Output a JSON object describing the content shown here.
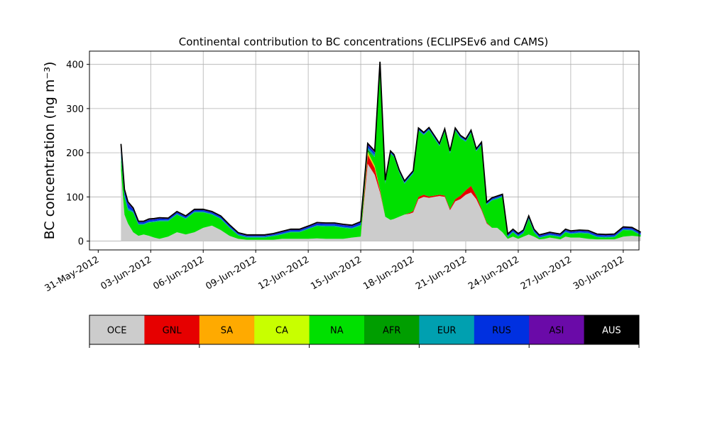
{
  "chart_data": {
    "type": "area",
    "title": "Continental contribution to BC concentrations (ECLIPSEv6 and CAMS)",
    "ylabel": "BC concentration (ng m⁻³)",
    "xlabel": "",
    "ylim": [
      -20,
      430
    ],
    "yticks": [
      0,
      100,
      200,
      300,
      400
    ],
    "xlim_days": [
      -0.5,
      30.9
    ],
    "x_tick_labels": [
      "31-May-2012",
      "03-Jun-2012",
      "06-Jun-2012",
      "09-Jun-2012",
      "12-Jun-2012",
      "15-Jun-2012",
      "18-Jun-2012",
      "21-Jun-2012",
      "24-Jun-2012",
      "27-Jun-2012",
      "30-Jun-2012"
    ],
    "x_tick_days": [
      0,
      3,
      6,
      9,
      12,
      15,
      18,
      21,
      24,
      27,
      30
    ],
    "grid": true,
    "legend_position": "bottom colorbar",
    "x_days": [
      1.3,
      1.5,
      1.7,
      2.0,
      2.3,
      2.6,
      2.9,
      3.2,
      3.5,
      4.0,
      4.5,
      5.0,
      5.5,
      6.0,
      6.5,
      7.0,
      7.5,
      8.0,
      8.5,
      9.0,
      9.5,
      10.0,
      10.5,
      11.0,
      11.5,
      12.0,
      12.5,
      13.0,
      13.5,
      14.0,
      14.5,
      15.0,
      15.4,
      15.8,
      16.1,
      16.4,
      16.7,
      16.9,
      17.2,
      17.5,
      17.8,
      18.0,
      18.3,
      18.6,
      18.9,
      19.2,
      19.5,
      19.8,
      20.1,
      20.4,
      20.7,
      21.0,
      21.3,
      21.6,
      21.9,
      22.2,
      22.5,
      22.8,
      23.1,
      23.4,
      23.7,
      24.0,
      24.3,
      24.6,
      24.9,
      25.2,
      25.5,
      25.8,
      26.1,
      26.4,
      26.7,
      27.0,
      27.5,
      28.0,
      28.5,
      29.0,
      29.5,
      30.0,
      30.5,
      31.0
    ],
    "series": [
      {
        "name": "OCE",
        "color": "#cccccc",
        "values": [
          160,
          60,
          40,
          20,
          12,
          15,
          12,
          8,
          5,
          10,
          20,
          15,
          20,
          30,
          35,
          25,
          12,
          5,
          3,
          3,
          3,
          3,
          5,
          5,
          5,
          5,
          6,
          5,
          5,
          5,
          8,
          10,
          175,
          150,
          110,
          55,
          48,
          50,
          55,
          60,
          62,
          65,
          95,
          100,
          98,
          100,
          102,
          100,
          70,
          90,
          95,
          105,
          110,
          95,
          70,
          40,
          30,
          30,
          20,
          5,
          10,
          5,
          10,
          15,
          10,
          4,
          5,
          8,
          6,
          4,
          10,
          8,
          8,
          5,
          4,
          4,
          4,
          10,
          12,
          10
        ]
      },
      {
        "name": "GNL",
        "color": "#e60000",
        "values": [
          0,
          0,
          0,
          0,
          0,
          0,
          0,
          0,
          0,
          0,
          0,
          0,
          0,
          0,
          0,
          0,
          0,
          0,
          0,
          0,
          0,
          0,
          0,
          0,
          0,
          0,
          0,
          0,
          0,
          0,
          0,
          0,
          20,
          15,
          5,
          0,
          0,
          0,
          0,
          0,
          2,
          3,
          5,
          5,
          3,
          3,
          3,
          3,
          3,
          5,
          8,
          10,
          15,
          8,
          3,
          2,
          0,
          0,
          0,
          0,
          0,
          0,
          0,
          0,
          0,
          0,
          0,
          0,
          0,
          0,
          0,
          0,
          0,
          0,
          0,
          0,
          0,
          0,
          0,
          0
        ]
      },
      {
        "name": "SA",
        "color": "#ffaa00",
        "values": [
          0,
          0,
          0,
          0,
          0,
          0,
          0,
          0,
          0,
          0,
          0,
          0,
          0,
          0,
          0,
          0,
          0,
          0,
          0,
          0,
          0,
          0,
          0,
          0,
          0,
          0,
          0,
          0,
          0,
          0,
          0,
          0,
          5,
          3,
          2,
          0,
          0,
          0,
          0,
          0,
          0,
          0,
          0,
          0,
          0,
          0,
          0,
          0,
          0,
          0,
          0,
          0,
          0,
          0,
          0,
          0,
          0,
          0,
          0,
          0,
          0,
          0,
          0,
          0,
          0,
          0,
          0,
          0,
          0,
          0,
          0,
          0,
          0,
          0,
          0,
          0,
          0,
          0,
          0,
          0
        ]
      },
      {
        "name": "CA",
        "color": "#c8ff00",
        "values": [
          0,
          0,
          0,
          0,
          0,
          0,
          0,
          0,
          0,
          0,
          0,
          0,
          0,
          0,
          0,
          0,
          0,
          0,
          0,
          0,
          0,
          0,
          0,
          0,
          0,
          0,
          0,
          0,
          0,
          0,
          0,
          0,
          2,
          2,
          0,
          0,
          0,
          0,
          0,
          0,
          0,
          0,
          0,
          0,
          0,
          0,
          0,
          0,
          0,
          0,
          0,
          0,
          0,
          0,
          0,
          0,
          0,
          0,
          0,
          0,
          0,
          0,
          0,
          0,
          0,
          0,
          0,
          0,
          0,
          0,
          0,
          0,
          0,
          0,
          0,
          0,
          0,
          0,
          0,
          0
        ]
      },
      {
        "name": "NA",
        "color": "#00e000",
        "values": [
          30,
          40,
          30,
          45,
          25,
          22,
          30,
          35,
          40,
          35,
          40,
          35,
          45,
          35,
          25,
          25,
          18,
          8,
          5,
          5,
          5,
          8,
          10,
          15,
          15,
          22,
          28,
          28,
          28,
          25,
          20,
          25,
          0,
          20,
          270,
          75,
          150,
          140,
          100,
          70,
          80,
          85,
          150,
          135,
          150,
          130,
          110,
          145,
          125,
          155,
          130,
          110,
          120,
          100,
          145,
          40,
          62,
          65,
          80,
          4,
          10,
          5,
          8,
          35,
          10,
          3,
          5,
          5,
          5,
          5,
          10,
          8,
          10,
          12,
          5,
          4,
          5,
          15,
          12,
          3
        ]
      },
      {
        "name": "AFR",
        "color": "#009e00",
        "values": [
          0,
          0,
          0,
          0,
          0,
          0,
          0,
          0,
          0,
          0,
          0,
          0,
          0,
          0,
          0,
          0,
          0,
          0,
          0,
          0,
          0,
          0,
          0,
          0,
          0,
          0,
          0,
          0,
          0,
          0,
          0,
          0,
          5,
          0,
          5,
          0,
          0,
          0,
          0,
          0,
          0,
          0,
          0,
          0,
          0,
          0,
          0,
          0,
          0,
          0,
          0,
          0,
          0,
          0,
          0,
          0,
          0,
          0,
          0,
          0,
          0,
          0,
          0,
          0,
          0,
          0,
          0,
          0,
          0,
          0,
          0,
          0,
          0,
          0,
          0,
          0,
          0,
          0,
          0,
          0
        ]
      },
      {
        "name": "EUR",
        "color": "#00a0b0",
        "values": [
          10,
          5,
          5,
          2,
          2,
          2,
          2,
          2,
          2,
          2,
          2,
          2,
          2,
          2,
          2,
          2,
          2,
          2,
          2,
          2,
          2,
          2,
          2,
          2,
          2,
          2,
          2,
          2,
          2,
          2,
          2,
          2,
          5,
          5,
          5,
          3,
          2,
          2,
          2,
          2,
          2,
          2,
          2,
          2,
          2,
          2,
          2,
          2,
          2,
          2,
          2,
          2,
          2,
          2,
          2,
          2,
          2,
          3,
          2,
          2,
          2,
          2,
          2,
          2,
          2,
          2,
          2,
          2,
          2,
          2,
          2,
          2,
          2,
          2,
          2,
          2,
          2,
          2,
          2,
          2
        ]
      },
      {
        "name": "RUS",
        "color": "#0030e0",
        "values": [
          15,
          8,
          10,
          5,
          4,
          4,
          4,
          4,
          4,
          3,
          3,
          3,
          3,
          3,
          3,
          3,
          3,
          2,
          2,
          2,
          2,
          2,
          3,
          3,
          3,
          3,
          4,
          4,
          4,
          4,
          4,
          5,
          5,
          5,
          5,
          3,
          2,
          2,
          2,
          2,
          2,
          2,
          2,
          2,
          2,
          2,
          2,
          2,
          2,
          2,
          2,
          2,
          2,
          2,
          2,
          2,
          2,
          2,
          2,
          3,
          3,
          3,
          3,
          3,
          3,
          3,
          3,
          3,
          3,
          3,
          3,
          3,
          3,
          3,
          3,
          3,
          3,
          3,
          3,
          3
        ]
      },
      {
        "name": "ASI",
        "color": "#6a0aa8",
        "values": [
          3,
          2,
          2,
          2,
          1,
          1,
          1,
          1,
          1,
          1,
          1,
          1,
          1,
          1,
          1,
          1,
          1,
          1,
          1,
          1,
          1,
          1,
          1,
          1,
          1,
          1,
          1,
          1,
          1,
          1,
          1,
          1,
          2,
          2,
          2,
          1,
          1,
          1,
          1,
          1,
          1,
          1,
          1,
          1,
          1,
          1,
          1,
          1,
          1,
          1,
          1,
          1,
          1,
          1,
          1,
          1,
          1,
          1,
          1,
          1,
          1,
          1,
          1,
          1,
          1,
          1,
          1,
          1,
          1,
          1,
          1,
          1,
          1,
          1,
          1,
          1,
          1,
          1,
          1,
          1
        ]
      },
      {
        "name": "AUS",
        "color": "#000000",
        "values": [
          2,
          2,
          2,
          1,
          1,
          1,
          1,
          1,
          1,
          1,
          1,
          1,
          1,
          1,
          1,
          1,
          1,
          1,
          1,
          1,
          1,
          1,
          1,
          1,
          1,
          1,
          1,
          1,
          1,
          1,
          1,
          1,
          2,
          2,
          2,
          1,
          1,
          1,
          1,
          1,
          1,
          1,
          1,
          1,
          1,
          1,
          1,
          1,
          1,
          1,
          1,
          1,
          1,
          1,
          1,
          1,
          1,
          1,
          1,
          1,
          1,
          1,
          1,
          1,
          1,
          1,
          1,
          1,
          1,
          1,
          1,
          1,
          1,
          1,
          1,
          1,
          1,
          1,
          1,
          1
        ]
      }
    ]
  }
}
